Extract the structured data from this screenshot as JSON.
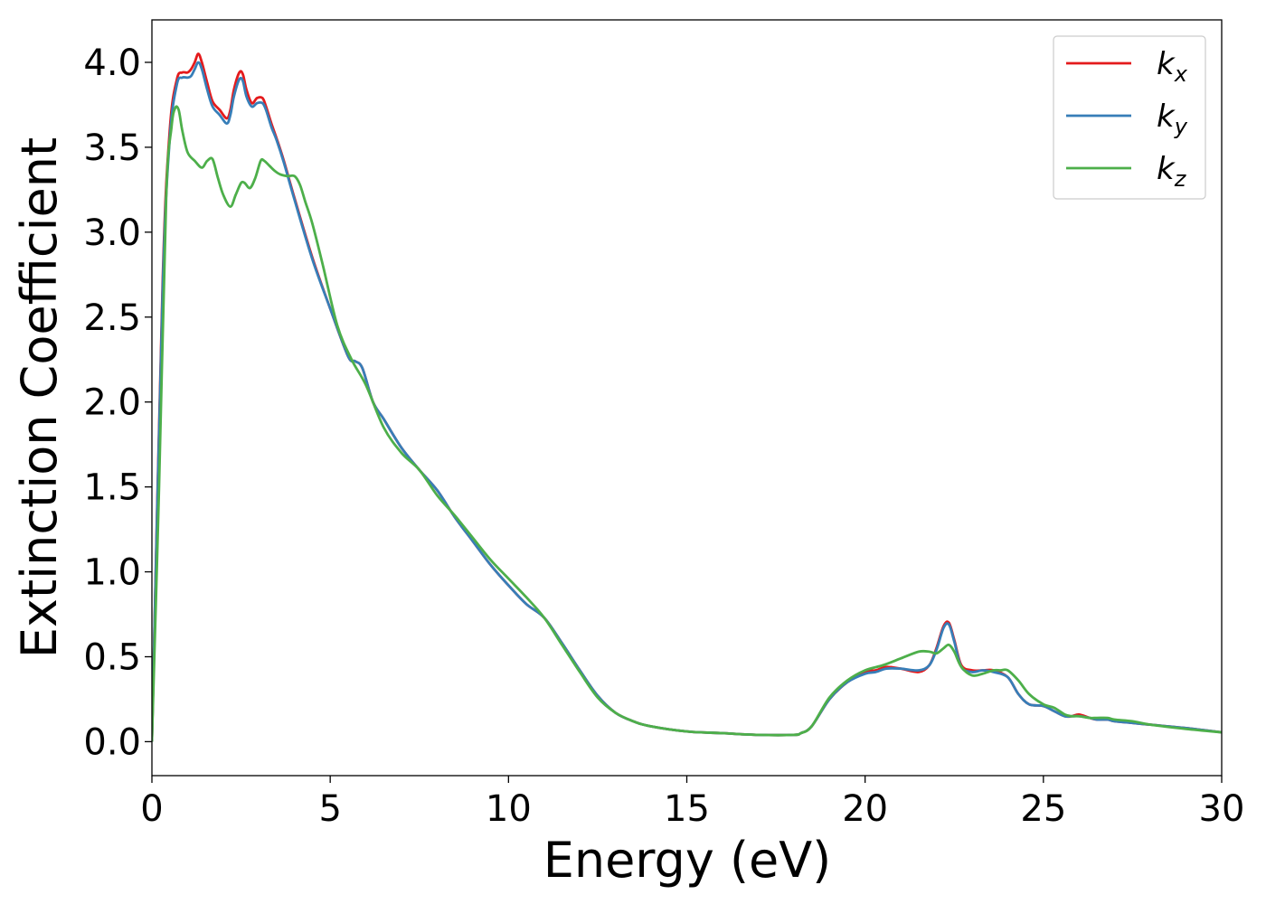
{
  "chart_data": {
    "type": "line",
    "title": "",
    "xlabel": "Energy (eV)",
    "ylabel": "Extinction Coefficient",
    "xlim": [
      0,
      30
    ],
    "ylim": [
      -0.2,
      4.25
    ],
    "xticks": [
      0,
      5,
      10,
      15,
      20,
      25,
      30
    ],
    "xtick_labels": [
      "0",
      "5",
      "10",
      "15",
      "20",
      "25",
      "30"
    ],
    "yticks": [
      0.0,
      0.5,
      1.0,
      1.5,
      2.0,
      2.5,
      3.0,
      3.5,
      4.0
    ],
    "ytick_labels": [
      "0.0",
      "0.5",
      "1.0",
      "1.5",
      "2.0",
      "2.5",
      "3.0",
      "3.5",
      "4.0"
    ],
    "grid": false,
    "legend_position": "top-right",
    "series": [
      {
        "name": "k",
        "subscript": "x",
        "color": "#e41a1c",
        "x": [
          0,
          0.3,
          0.5,
          0.7,
          0.85,
          1.0,
          1.1,
          1.2,
          1.3,
          1.4,
          1.55,
          1.7,
          1.9,
          2.1,
          2.2,
          2.3,
          2.45,
          2.55,
          2.65,
          2.8,
          2.95,
          3.1,
          3.2,
          3.35,
          3.5,
          3.7,
          4.0,
          4.5,
          5.0,
          5.5,
          5.7,
          5.9,
          6.2,
          6.5,
          7.0,
          7.5,
          8.0,
          8.5,
          9.0,
          9.5,
          10.0,
          10.5,
          11.0,
          11.5,
          12.0,
          12.5,
          13.0,
          13.5,
          14.0,
          15.0,
          16.0,
          17.0,
          18.0,
          18.2,
          18.5,
          19.0,
          19.5,
          20.0,
          20.3,
          20.6,
          21.0,
          21.5,
          21.8,
          22.0,
          22.2,
          22.35,
          22.5,
          22.7,
          23.0,
          23.3,
          23.6,
          24.0,
          24.3,
          24.6,
          25.0,
          25.3,
          25.6,
          25.8,
          26.0,
          26.3,
          26.5,
          26.8,
          27.0,
          27.5,
          28.0,
          29.0,
          30.0
        ],
        "values": [
          0.0,
          2.7,
          3.6,
          3.9,
          3.94,
          3.94,
          3.96,
          4.0,
          4.05,
          4.0,
          3.88,
          3.77,
          3.72,
          3.67,
          3.72,
          3.84,
          3.94,
          3.93,
          3.84,
          3.76,
          3.79,
          3.79,
          3.74,
          3.64,
          3.55,
          3.42,
          3.2,
          2.85,
          2.55,
          2.27,
          2.24,
          2.2,
          2.0,
          1.9,
          1.73,
          1.6,
          1.48,
          1.32,
          1.18,
          1.04,
          0.92,
          0.81,
          0.73,
          0.58,
          0.42,
          0.27,
          0.17,
          0.12,
          0.09,
          0.06,
          0.05,
          0.04,
          0.04,
          0.05,
          0.09,
          0.25,
          0.35,
          0.41,
          0.42,
          0.44,
          0.43,
          0.41,
          0.45,
          0.55,
          0.68,
          0.7,
          0.6,
          0.45,
          0.42,
          0.42,
          0.42,
          0.38,
          0.28,
          0.22,
          0.21,
          0.18,
          0.15,
          0.15,
          0.16,
          0.14,
          0.13,
          0.13,
          0.12,
          0.11,
          0.1,
          0.08,
          0.055
        ]
      },
      {
        "name": "k",
        "subscript": "y",
        "color": "#377eb8",
        "x": [
          0,
          0.3,
          0.5,
          0.7,
          0.85,
          1.0,
          1.1,
          1.2,
          1.3,
          1.4,
          1.55,
          1.7,
          1.9,
          2.1,
          2.2,
          2.3,
          2.45,
          2.55,
          2.65,
          2.8,
          2.95,
          3.1,
          3.2,
          3.35,
          3.5,
          3.7,
          4.0,
          4.5,
          5.0,
          5.5,
          5.7,
          5.9,
          6.2,
          6.5,
          7.0,
          7.5,
          8.0,
          8.5,
          9.0,
          9.5,
          10.0,
          10.5,
          11.0,
          11.5,
          12.0,
          12.5,
          13.0,
          13.5,
          14.0,
          15.0,
          16.0,
          17.0,
          18.0,
          18.2,
          18.5,
          19.0,
          19.5,
          20.0,
          20.3,
          20.6,
          21.0,
          21.5,
          21.8,
          22.0,
          22.2,
          22.35,
          22.5,
          22.7,
          23.0,
          23.3,
          23.6,
          24.0,
          24.3,
          24.6,
          25.0,
          25.3,
          25.6,
          25.8,
          26.0,
          26.3,
          26.5,
          26.8,
          27.0,
          27.5,
          28.0,
          29.0,
          30.0
        ],
        "values": [
          0.0,
          2.65,
          3.55,
          3.87,
          3.91,
          3.91,
          3.92,
          3.96,
          4.0,
          3.96,
          3.84,
          3.74,
          3.69,
          3.64,
          3.69,
          3.8,
          3.9,
          3.89,
          3.8,
          3.74,
          3.76,
          3.76,
          3.72,
          3.62,
          3.54,
          3.41,
          3.19,
          2.84,
          2.55,
          2.27,
          2.24,
          2.2,
          2.0,
          1.9,
          1.73,
          1.6,
          1.48,
          1.32,
          1.18,
          1.04,
          0.92,
          0.81,
          0.73,
          0.58,
          0.42,
          0.27,
          0.17,
          0.12,
          0.09,
          0.06,
          0.05,
          0.04,
          0.04,
          0.05,
          0.09,
          0.25,
          0.35,
          0.4,
          0.41,
          0.43,
          0.43,
          0.42,
          0.45,
          0.54,
          0.67,
          0.69,
          0.59,
          0.44,
          0.41,
          0.42,
          0.41,
          0.38,
          0.28,
          0.22,
          0.21,
          0.18,
          0.15,
          0.15,
          0.15,
          0.14,
          0.13,
          0.13,
          0.12,
          0.11,
          0.1,
          0.08,
          0.055
        ]
      },
      {
        "name": "k",
        "subscript": "z",
        "color": "#4daf4a",
        "x": [
          0,
          0.2,
          0.4,
          0.55,
          0.65,
          0.75,
          0.85,
          1.0,
          1.2,
          1.4,
          1.55,
          1.7,
          1.85,
          2.0,
          2.2,
          2.35,
          2.5,
          2.6,
          2.75,
          2.9,
          3.05,
          3.15,
          3.3,
          3.45,
          3.6,
          3.8,
          4.0,
          4.15,
          4.3,
          4.5,
          4.8,
          5.2,
          5.6,
          6.0,
          6.5,
          7.0,
          7.5,
          8.0,
          8.5,
          9.0,
          9.5,
          10.0,
          10.5,
          11.0,
          11.5,
          12.0,
          12.5,
          13.0,
          13.5,
          14.0,
          15.0,
          16.0,
          17.0,
          18.0,
          18.2,
          18.5,
          19.0,
          19.5,
          20.0,
          20.5,
          21.0,
          21.5,
          21.8,
          22.0,
          22.2,
          22.35,
          22.5,
          22.7,
          23.0,
          23.3,
          23.6,
          23.8,
          24.0,
          24.3,
          24.6,
          25.0,
          25.3,
          25.6,
          25.8,
          26.0,
          26.3,
          26.5,
          26.8,
          27.0,
          27.5,
          28.0,
          29.0,
          30.0
        ],
        "values": [
          0.0,
          1.5,
          3.2,
          3.62,
          3.73,
          3.72,
          3.6,
          3.47,
          3.42,
          3.38,
          3.42,
          3.43,
          3.32,
          3.22,
          3.15,
          3.22,
          3.29,
          3.29,
          3.26,
          3.32,
          3.42,
          3.42,
          3.39,
          3.36,
          3.34,
          3.33,
          3.33,
          3.28,
          3.18,
          3.05,
          2.8,
          2.45,
          2.25,
          2.1,
          1.85,
          1.7,
          1.6,
          1.45,
          1.33,
          1.2,
          1.07,
          0.96,
          0.85,
          0.73,
          0.57,
          0.41,
          0.26,
          0.17,
          0.12,
          0.09,
          0.06,
          0.05,
          0.04,
          0.04,
          0.05,
          0.09,
          0.26,
          0.36,
          0.42,
          0.45,
          0.49,
          0.53,
          0.53,
          0.52,
          0.55,
          0.57,
          0.53,
          0.44,
          0.39,
          0.4,
          0.42,
          0.42,
          0.42,
          0.36,
          0.28,
          0.22,
          0.2,
          0.16,
          0.15,
          0.15,
          0.14,
          0.14,
          0.14,
          0.13,
          0.12,
          0.1,
          0.075,
          0.055
        ]
      }
    ]
  }
}
